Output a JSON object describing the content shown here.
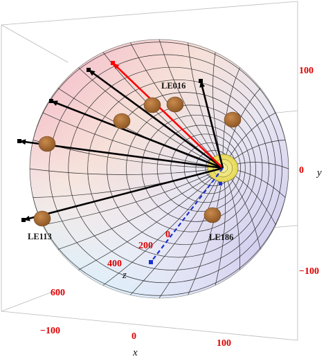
{
  "colors": {
    "tick_label": "#dd0000",
    "highlight_track": "#ff0000",
    "dashed_track": "#1a2fd0",
    "track": "#000000",
    "cluster": "#a0652e",
    "vertex": "#e6df2a"
  },
  "axes": {
    "y": {
      "label": "y",
      "ticks": [
        "100",
        "0",
        "−100"
      ]
    },
    "x": {
      "label": "x",
      "ticks": [
        "−100",
        "0",
        "100"
      ]
    },
    "z": {
      "label": "z",
      "ticks": [
        "0",
        "200",
        "400",
        "600"
      ]
    }
  },
  "labels": {
    "le016": "LE016",
    "le113": "LE113",
    "le186": "LE186"
  }
}
